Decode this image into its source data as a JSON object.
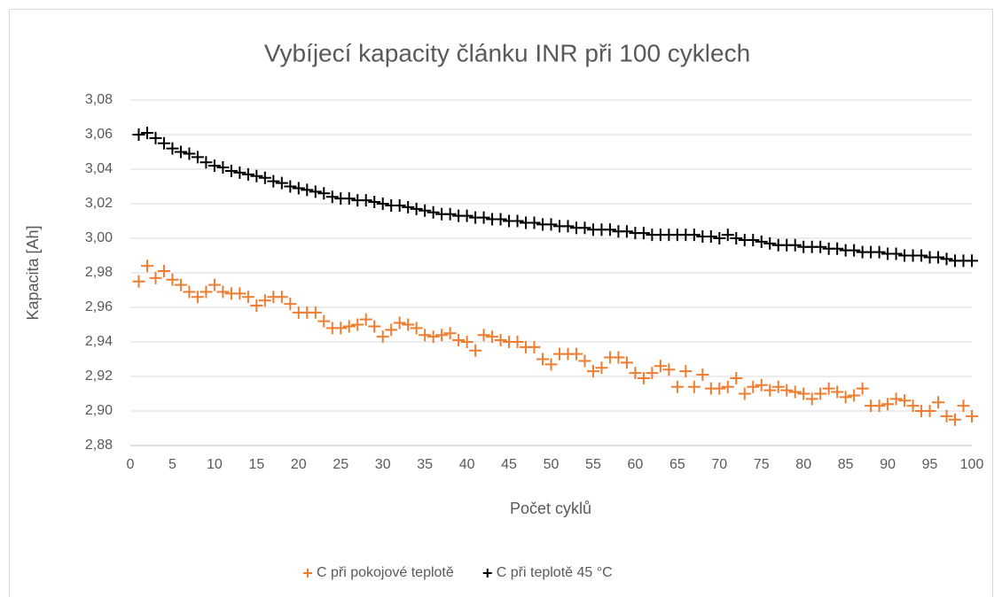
{
  "chart_data": {
    "type": "scatter",
    "title": "Vybíjecí kapacity článku INR při 100 cyklech",
    "x_label": "Počet cyklů",
    "y_label": "Kapacita [Ah]",
    "x": [
      1,
      2,
      3,
      4,
      5,
      6,
      7,
      8,
      9,
      10,
      11,
      12,
      13,
      14,
      15,
      16,
      17,
      18,
      19,
      20,
      21,
      22,
      23,
      24,
      25,
      26,
      27,
      28,
      29,
      30,
      31,
      32,
      33,
      34,
      35,
      36,
      37,
      38,
      39,
      40,
      41,
      42,
      43,
      44,
      45,
      46,
      47,
      48,
      49,
      50,
      51,
      52,
      53,
      54,
      55,
      56,
      57,
      58,
      59,
      60,
      61,
      62,
      63,
      64,
      65,
      66,
      67,
      68,
      69,
      70,
      71,
      72,
      73,
      74,
      75,
      76,
      77,
      78,
      79,
      80,
      81,
      82,
      83,
      84,
      85,
      86,
      87,
      88,
      89,
      90,
      91,
      92,
      93,
      94,
      95,
      96,
      97,
      98,
      99,
      100
    ],
    "series": [
      {
        "name": "C při pokojové teplotě",
        "color": "#ed7d31",
        "values": [
          2.975,
          2.984,
          2.977,
          2.981,
          2.976,
          2.973,
          2.969,
          2.966,
          2.969,
          2.973,
          2.969,
          2.968,
          2.968,
          2.966,
          2.961,
          2.964,
          2.966,
          2.966,
          2.962,
          2.957,
          2.957,
          2.957,
          2.952,
          2.948,
          2.948,
          2.949,
          2.95,
          2.953,
          2.949,
          2.943,
          2.947,
          2.951,
          2.95,
          2.948,
          2.944,
          2.943,
          2.944,
          2.945,
          2.941,
          2.94,
          2.935,
          2.944,
          2.943,
          2.941,
          2.94,
          2.94,
          2.937,
          2.937,
          2.93,
          2.927,
          2.933,
          2.933,
          2.933,
          2.929,
          2.923,
          2.925,
          2.931,
          2.931,
          2.928,
          2.922,
          2.919,
          2.922,
          2.926,
          2.924,
          2.914,
          2.923,
          2.914,
          2.921,
          2.913,
          2.913,
          2.914,
          2.919,
          2.91,
          2.914,
          2.915,
          2.912,
          2.914,
          2.912,
          2.911,
          2.91,
          2.907,
          2.91,
          2.913,
          2.911,
          2.908,
          2.909,
          2.913,
          2.903,
          2.903,
          2.904,
          2.907,
          2.906,
          2.903,
          2.9,
          2.9,
          2.905,
          2.897,
          2.895,
          2.903,
          2.897
        ]
      },
      {
        "name": "C při teplotě 45 °C",
        "color": "#000000",
        "values": [
          3.06,
          3.061,
          3.058,
          3.055,
          3.052,
          3.05,
          3.049,
          3.047,
          3.044,
          3.042,
          3.041,
          3.039,
          3.038,
          3.037,
          3.036,
          3.035,
          3.033,
          3.032,
          3.03,
          3.029,
          3.028,
          3.027,
          3.026,
          3.024,
          3.023,
          3.023,
          3.022,
          3.022,
          3.021,
          3.02,
          3.019,
          3.019,
          3.018,
          3.017,
          3.016,
          3.015,
          3.014,
          3.014,
          3.013,
          3.013,
          3.012,
          3.012,
          3.011,
          3.011,
          3.01,
          3.01,
          3.009,
          3.009,
          3.008,
          3.008,
          3.007,
          3.007,
          3.006,
          3.006,
          3.005,
          3.005,
          3.005,
          3.004,
          3.004,
          3.003,
          3.003,
          3.002,
          3.002,
          3.002,
          3.002,
          3.002,
          3.002,
          3.001,
          3.001,
          3.0,
          3.002,
          3.0,
          2.999,
          2.999,
          2.998,
          2.997,
          2.996,
          2.996,
          2.996,
          2.995,
          2.995,
          2.995,
          2.994,
          2.994,
          2.993,
          2.993,
          2.992,
          2.992,
          2.992,
          2.991,
          2.991,
          2.99,
          2.99,
          2.99,
          2.989,
          2.989,
          2.988,
          2.987,
          2.987,
          2.987
        ]
      }
    ],
    "xlim": [
      0,
      100
    ],
    "xticks": [
      0,
      5,
      10,
      15,
      20,
      25,
      30,
      35,
      40,
      45,
      50,
      55,
      60,
      65,
      70,
      75,
      80,
      85,
      90,
      95,
      100
    ],
    "ylim": [
      2.88,
      3.08
    ],
    "yticks": [
      {
        "value": 2.88,
        "label": "2,88"
      },
      {
        "value": 2.9,
        "label": "2,90"
      },
      {
        "value": 2.92,
        "label": "2,92"
      },
      {
        "value": 2.94,
        "label": "2,94"
      },
      {
        "value": 2.96,
        "label": "2,96"
      },
      {
        "value": 2.98,
        "label": "2,98"
      },
      {
        "value": 3.0,
        "label": "3,00"
      },
      {
        "value": 3.02,
        "label": "3,02"
      },
      {
        "value": 3.04,
        "label": "3,04"
      },
      {
        "value": 3.06,
        "label": "3,06"
      },
      {
        "value": 3.08,
        "label": "3,08"
      }
    ],
    "grid": true,
    "legend": "bottom"
  }
}
